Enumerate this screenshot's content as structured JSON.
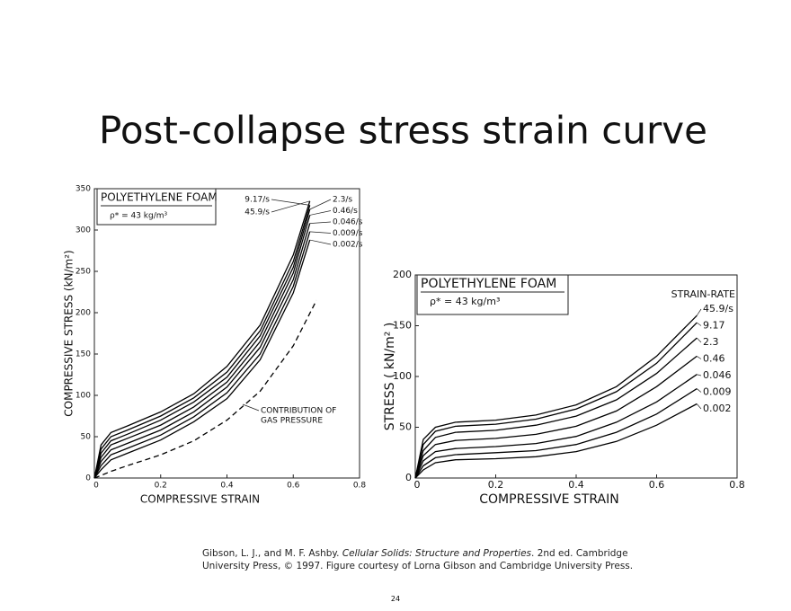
{
  "title": "Post-collapse stress strain curve",
  "citation": [
    "Gibson, L. J., and M. F. Ashby. ",
    "Cellular Solids: Structure and Properties",
    ". 2nd ed. Cambridge University Press, © 1997. Figure courtesy of Lorna Gibson and Cambridge University Press."
  ],
  "page_number": "24",
  "chart_data": [
    {
      "type": "line",
      "box_title": "POLYETHYLENE FOAM",
      "box_text": "ρ* = 43 kg/m³",
      "x_label": "COMPRESSIVE STRAIN",
      "y_label": "COMPRESSIVE STRESS (kN/m²)",
      "xlim": [
        0,
        0.8
      ],
      "xticks": [
        0,
        0.2,
        0.4,
        0.6,
        0.8
      ],
      "ylim": [
        0,
        350
      ],
      "yticks": [
        0,
        50,
        100,
        150,
        200,
        250,
        300,
        350
      ],
      "x": [
        0,
        0.02,
        0.05,
        0.1,
        0.2,
        0.3,
        0.4,
        0.5,
        0.6,
        0.65
      ],
      "annotations": [
        "CONTRIBUTION OF",
        "GAS PRESSURE"
      ],
      "series": [
        {
          "name": "9.17/s",
          "color": "#000000",
          "values": [
            0,
            35,
            50,
            58,
            75,
            97,
            128,
            178,
            262,
            330
          ]
        },
        {
          "name": "45.9/s",
          "color": "#000000",
          "values": [
            0,
            40,
            55,
            63,
            80,
            102,
            135,
            185,
            270,
            335
          ]
        },
        {
          "name": "2.3/s",
          "color": "#000000",
          "values": [
            0,
            30,
            45,
            53,
            70,
            92,
            122,
            172,
            255,
            325
          ]
        },
        {
          "name": "0.46/s",
          "color": "#000000",
          "values": [
            0,
            25,
            40,
            48,
            64,
            86,
            116,
            165,
            248,
            318
          ]
        },
        {
          "name": "0.046/s",
          "color": "#000000",
          "values": [
            0,
            20,
            34,
            42,
            58,
            80,
            110,
            158,
            240,
            308
          ]
        },
        {
          "name": "0.009/s",
          "color": "#000000",
          "values": [
            0,
            15,
            28,
            36,
            52,
            74,
            103,
            150,
            232,
            298
          ]
        },
        {
          "name": "0.002/s",
          "color": "#000000",
          "values": [
            0,
            10,
            22,
            30,
            46,
            68,
            96,
            143,
            224,
            288
          ]
        },
        {
          "color": "#000000",
          "dashed": true,
          "x": [
            0,
            0.02,
            0.05,
            0.1,
            0.2,
            0.3,
            0.4,
            0.5,
            0.6,
            0.67
          ],
          "values": [
            0,
            3,
            8,
            15,
            28,
            45,
            70,
            105,
            160,
            215
          ]
        }
      ]
    },
    {
      "type": "line",
      "box_title": "POLYETHYLENE FOAM",
      "box_text": "ρ* = 43 kg/m³",
      "x_label": "COMPRESSIVE STRAIN",
      "y_label": "STRESS ( kN/m² )",
      "legend_title": "STRAIN-RATE",
      "xlim": [
        0,
        0.8
      ],
      "xticks": [
        0,
        0.2,
        0.4,
        0.6,
        0.8
      ],
      "ylim": [
        0,
        200
      ],
      "yticks": [
        0,
        50,
        100,
        150,
        200
      ],
      "x": [
        0,
        0.02,
        0.05,
        0.1,
        0.2,
        0.3,
        0.4,
        0.5,
        0.6,
        0.7
      ],
      "series": [
        {
          "name": "45.9/s",
          "color": "#000000",
          "values": [
            0,
            38,
            50,
            55,
            57,
            62,
            72,
            90,
            120,
            160
          ]
        },
        {
          "name": "9.17",
          "color": "#000000",
          "values": [
            0,
            33,
            46,
            51,
            53,
            58,
            68,
            85,
            113,
            153
          ]
        },
        {
          "name": "2.3",
          "color": "#000000",
          "values": [
            0,
            27,
            40,
            45,
            47,
            52,
            61,
            77,
            103,
            138
          ]
        },
        {
          "name": "0.46",
          "color": "#000000",
          "values": [
            0,
            22,
            33,
            37,
            39,
            43,
            51,
            66,
            90,
            120
          ]
        },
        {
          "name": "0.046",
          "color": "#000000",
          "values": [
            0,
            17,
            26,
            29,
            31,
            34,
            41,
            55,
            75,
            102
          ]
        },
        {
          "name": "0.009",
          "color": "#000000",
          "values": [
            0,
            12,
            20,
            23,
            25,
            27,
            33,
            45,
            63,
            88
          ]
        },
        {
          "name": "0.002",
          "color": "#000000",
          "values": [
            0,
            8,
            15,
            18,
            19,
            21,
            26,
            36,
            52,
            73
          ]
        }
      ]
    }
  ]
}
